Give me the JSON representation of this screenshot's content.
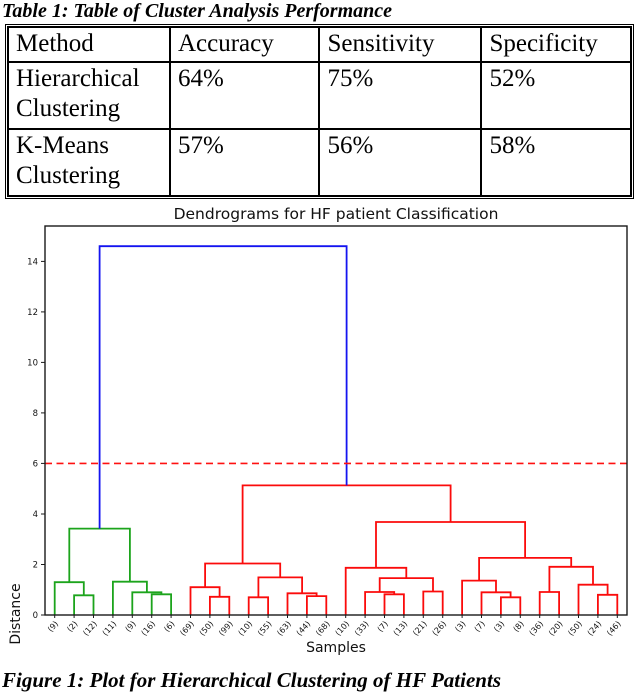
{
  "table": {
    "caption": "Table 1: Table of Cluster Analysis Performance",
    "headers": [
      "Method",
      "Accuracy",
      "Sensitivity",
      "Specificity"
    ],
    "rows": [
      {
        "method": "Hierarchical Clustering",
        "accuracy": "64%",
        "sensitivity": "75%",
        "specificity": "52%"
      },
      {
        "method": "K-Means Clustering",
        "accuracy": "57%",
        "sensitivity": "56%",
        "specificity": "58%"
      }
    ]
  },
  "figure_caption": "Figure 1: Plot for Hierarchical Clustering of HF Patients",
  "chart_data": {
    "type": "dendrogram",
    "title": "Dendrograms for HF patient Classification",
    "xlabel": "Samples",
    "ylabel": "Distance",
    "ylim": [
      0,
      15.4
    ],
    "yticks": [
      0,
      2,
      4,
      6,
      8,
      10,
      12,
      14
    ],
    "grid": false,
    "threshold": {
      "y": 6,
      "color": "#ff1111",
      "style": "dashed"
    },
    "leaves": [
      "(9)",
      "(2)",
      "(12)",
      "(11)",
      "(9)",
      "(16)",
      "(6)",
      "(69)",
      "(50)",
      "(99)",
      "(10)",
      "(55)",
      "(63)",
      "(44)",
      "(68)",
      "(10)",
      "(33)",
      "(7)",
      "(13)",
      "(21)",
      "(26)",
      "(3)",
      "(7)",
      "(3)",
      "(8)",
      "(36)",
      "(20)",
      "(50)",
      "(24)",
      "(46)"
    ],
    "palette": {
      "green": "#1ca41c",
      "red": "#fb0b0b",
      "blue": "#1414f0"
    },
    "links": [
      {
        "id": "A",
        "a": "L1",
        "b": "L2",
        "h": 0.78,
        "c": "green"
      },
      {
        "id": "B",
        "a": "L0",
        "b": "A",
        "h": 1.3,
        "c": "green"
      },
      {
        "id": "C",
        "a": "L5",
        "b": "L6",
        "h": 0.82,
        "c": "green"
      },
      {
        "id": "D",
        "a": "L4",
        "b": "C",
        "h": 0.9,
        "c": "green"
      },
      {
        "id": "E",
        "a": "L3",
        "b": "D",
        "h": 1.32,
        "c": "green"
      },
      {
        "id": "F",
        "a": "B",
        "b": "E",
        "h": 3.42,
        "c": "green"
      },
      {
        "id": "G",
        "a": "L8",
        "b": "L9",
        "h": 0.72,
        "c": "red"
      },
      {
        "id": "H",
        "a": "L7",
        "b": "G",
        "h": 1.1,
        "c": "red"
      },
      {
        "id": "I",
        "a": "L10",
        "b": "L11",
        "h": 0.7,
        "c": "red"
      },
      {
        "id": "J",
        "a": "L13",
        "b": "L14",
        "h": 0.75,
        "c": "red"
      },
      {
        "id": "K",
        "a": "L12",
        "b": "J",
        "h": 0.86,
        "c": "red"
      },
      {
        "id": "L",
        "a": "I",
        "b": "K",
        "h": 1.49,
        "c": "red"
      },
      {
        "id": "M",
        "a": "H",
        "b": "L",
        "h": 2.04,
        "c": "red"
      },
      {
        "id": "N",
        "a": "L17",
        "b": "L18",
        "h": 0.82,
        "c": "red"
      },
      {
        "id": "O",
        "a": "L16",
        "b": "N",
        "h": 0.91,
        "c": "red"
      },
      {
        "id": "P",
        "a": "L19",
        "b": "L20",
        "h": 0.93,
        "c": "red"
      },
      {
        "id": "Q",
        "a": "O",
        "b": "P",
        "h": 1.46,
        "c": "red"
      },
      {
        "id": "R",
        "a": "L15",
        "b": "Q",
        "h": 1.87,
        "c": "red"
      },
      {
        "id": "S",
        "a": "L23",
        "b": "L24",
        "h": 0.7,
        "c": "red"
      },
      {
        "id": "T",
        "a": "L22",
        "b": "S",
        "h": 0.9,
        "c": "red"
      },
      {
        "id": "U",
        "a": "L21",
        "b": "T",
        "h": 1.36,
        "c": "red"
      },
      {
        "id": "V",
        "a": "L25",
        "b": "L26",
        "h": 0.91,
        "c": "red"
      },
      {
        "id": "W",
        "a": "L28",
        "b": "L29",
        "h": 0.8,
        "c": "red"
      },
      {
        "id": "X",
        "a": "L27",
        "b": "W",
        "h": 1.2,
        "c": "red"
      },
      {
        "id": "Y",
        "a": "V",
        "b": "X",
        "h": 1.91,
        "c": "red"
      },
      {
        "id": "Z",
        "a": "U",
        "b": "Y",
        "h": 2.26,
        "c": "red"
      },
      {
        "id": "AA",
        "a": "R",
        "b": "Z",
        "h": 3.68,
        "c": "red"
      },
      {
        "id": "AB",
        "a": "M",
        "b": "AA",
        "h": 5.13,
        "c": "red"
      },
      {
        "id": "ROOT",
        "a": "F",
        "b": "AB",
        "h": 14.6,
        "c": "blue"
      }
    ]
  }
}
